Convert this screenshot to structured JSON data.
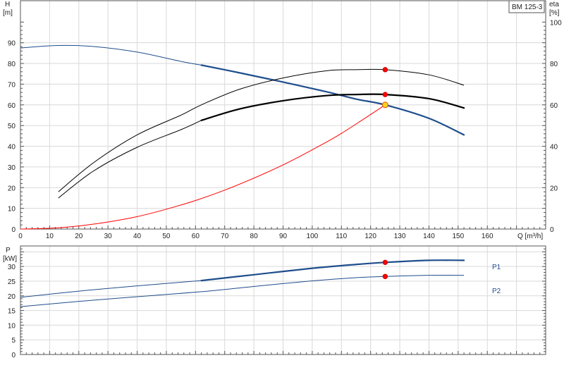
{
  "chart_data": [
    {
      "type": "line",
      "title": "BM 125-3",
      "ylabel": "H",
      "ylabel_unit": "[m]",
      "y2label": "eta",
      "y2label_unit": "[%]",
      "xlabel": "Q [m³/h]",
      "xlim": [
        0,
        180
      ],
      "ylim": [
        0,
        100
      ],
      "y2lim": [
        0,
        100
      ],
      "x_ticks": [
        0,
        10,
        20,
        30,
        40,
        50,
        60,
        70,
        80,
        90,
        100,
        110,
        120,
        130,
        140,
        150,
        160
      ],
      "y_ticks": [
        0,
        10,
        20,
        30,
        40,
        50,
        60,
        70,
        80,
        90
      ],
      "y2_ticks": [
        0,
        20,
        40,
        60,
        80,
        100
      ],
      "grid": true,
      "series": [
        {
          "color": "#1f4e8c",
          "axis": "left",
          "x": [
            0,
            13,
            25,
            40,
            55,
            62,
            75,
            90,
            105,
            115,
            125,
            140,
            152
          ],
          "y": [
            87.5,
            88.7,
            88.2,
            85.5,
            81,
            79.2,
            75.5,
            71,
            66.3,
            62.8,
            60,
            53.5,
            45.5
          ],
          "bold_from": 62
        },
        {
          "color": "#000000",
          "axis": "right",
          "x": [
            13,
            25,
            40,
            55,
            62,
            75,
            90,
            105,
            115,
            125,
            140,
            152
          ],
          "y": [
            18,
            32,
            45.5,
            55,
            60,
            67.5,
            73,
            76.5,
            77,
            77,
            74.5,
            69.5
          ],
          "bold_from": 999
        },
        {
          "color": "#000000",
          "axis": "right",
          "x": [
            13,
            25,
            40,
            55,
            62,
            75,
            90,
            105,
            115,
            125,
            140,
            152
          ],
          "y": [
            15,
            28,
            39.5,
            48,
            52.5,
            58,
            62,
            64.5,
            65,
            65,
            63,
            58.5
          ],
          "bold_from": 62
        },
        {
          "color": "#ff0000",
          "axis": "left",
          "x": [
            0,
            10,
            20,
            30,
            40,
            50,
            60,
            70,
            80,
            90,
            100,
            110,
            125
          ],
          "y": [
            0,
            0.4,
            1.5,
            3.4,
            6,
            9.6,
            13.8,
            18.8,
            24.6,
            31,
            38.3,
            46.2,
            60
          ],
          "bold_from": 999
        }
      ],
      "points": [
        {
          "x": 125,
          "y": 60,
          "axis": "left",
          "color": "#ffd21f",
          "edge": "#d35400"
        },
        {
          "x": 125,
          "y": 77,
          "axis": "right",
          "color": "#ff0000",
          "edge": "#cc0000"
        },
        {
          "x": 125,
          "y": 65,
          "axis": "right",
          "color": "#ff0000",
          "edge": "#cc0000"
        }
      ]
    },
    {
      "type": "line",
      "ylabel": "P",
      "ylabel_unit": "[kW]",
      "xlim": [
        0,
        180
      ],
      "ylim": [
        0,
        37
      ],
      "y_ticks": [
        0,
        5,
        10,
        15,
        20,
        25,
        30
      ],
      "grid": true,
      "series": [
        {
          "name": "P1",
          "color": "#1f4e8c",
          "x": [
            0,
            20,
            40,
            62,
            80,
            100,
            115,
            125,
            140,
            152
          ],
          "y": [
            19.5,
            21.6,
            23.4,
            25.2,
            27.2,
            29.4,
            30.7,
            31.4,
            32.1,
            32.1
          ],
          "bold_from": 62
        },
        {
          "name": "P2",
          "color": "#1f4e8c",
          "x": [
            0,
            20,
            40,
            62,
            80,
            100,
            115,
            125,
            140,
            152
          ],
          "y": [
            16.3,
            18.1,
            19.7,
            21.4,
            23.2,
            25.1,
            26.2,
            26.6,
            27.0,
            27.0
          ],
          "bold_from": 999
        }
      ],
      "points": [
        {
          "x": 125,
          "y": 31.4,
          "color": "#ff0000",
          "edge": "#cc0000"
        },
        {
          "x": 125,
          "y": 26.6,
          "color": "#ff0000",
          "edge": "#cc0000"
        }
      ]
    }
  ]
}
